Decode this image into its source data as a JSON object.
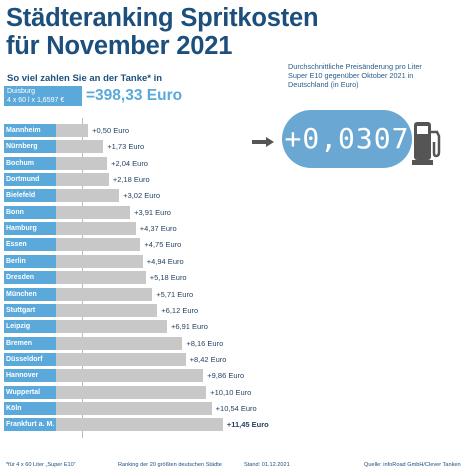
{
  "title_line1": "Städteranking Spritkosten",
  "title_line2": "für November 2021",
  "subtitle": "So viel zahlen Sie an der Tanke* in",
  "base": {
    "city": "Duisburg",
    "formula": "4 x 60 l x 1,6597 €",
    "value": "=398,33 Euro"
  },
  "price_change": {
    "caption": "Durchschnittliche Preisänderung pro Liter Super E10 gegenüber Oktober 2021 in Deutschland (in Euro)",
    "value": "+0,0307"
  },
  "footer": {
    "note": "*für 4 x 60 Liter „Super E10“",
    "ranking": "Ranking der 20 größten deutschen Städte",
    "date": "Stand: 01.12.2021",
    "source": "Quelle: infoRoad GmbH/Clever Tanken"
  },
  "colors": {
    "title": "#1d4f7c",
    "label_bg": "#5aa9da",
    "bar": "#c8c8c8",
    "display": "#6aa8d3"
  },
  "chart_data": {
    "type": "bar",
    "orientation": "horizontal",
    "categories": [
      "Mannheim",
      "Nürnberg",
      "Bochum",
      "Dortmund",
      "Bielefeld",
      "Bonn",
      "Hamburg",
      "Essen",
      "Berlin",
      "Dresden",
      "München",
      "Stuttgart",
      "Leipzig",
      "Bremen",
      "Düsseldorf",
      "Hannover",
      "Wuppertal",
      "Köln",
      "Frankfurt a. M."
    ],
    "values": [
      0.5,
      1.73,
      2.04,
      2.18,
      3.02,
      3.91,
      4.37,
      4.75,
      4.94,
      5.18,
      5.71,
      6.12,
      6.91,
      8.16,
      8.42,
      9.86,
      10.1,
      10.54,
      11.45
    ],
    "value_labels": [
      "+0,50 Euro",
      "+1,73 Euro",
      "+2,04 Euro",
      "+2,18 Euro",
      "+3,02 Euro",
      "+3,91 Euro",
      "+4,37 Euro",
      "+4,75 Euro",
      "+4,94 Euro",
      "+5,18 Euro",
      "+5,71 Euro",
      "+6,12 Euro",
      "+6,91 Euro",
      "+8,16 Euro",
      "+8,42 Euro",
      "+9,86 Euro",
      "+10,10 Euro",
      "+10,54 Euro",
      "+11,45 Euro"
    ],
    "baseline_city": "Duisburg",
    "baseline_value": 398.33
  }
}
